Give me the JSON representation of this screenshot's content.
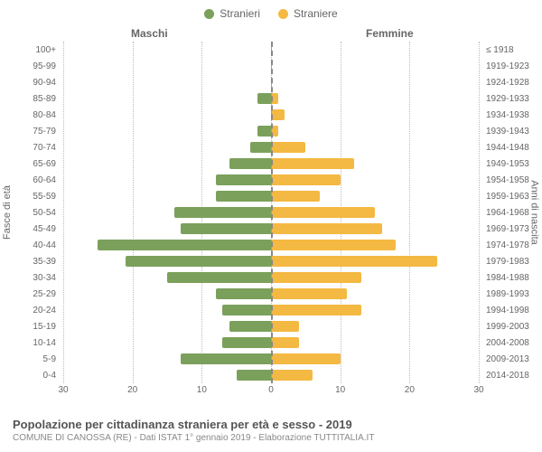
{
  "chart": {
    "type": "population-pyramid",
    "legend": {
      "male": {
        "label": "Stranieri",
        "color": "#7ba05b"
      },
      "female": {
        "label": "Straniere",
        "color": "#f4b942"
      }
    },
    "gender_headers": {
      "male": "Maschi",
      "female": "Femmine"
    },
    "y_left_title": "Fasce di età",
    "y_right_title": "Anni di nascita",
    "x_max": 30,
    "x_ticks": [
      30,
      20,
      10,
      0,
      10,
      20,
      30
    ],
    "colors": {
      "grid": "#bbbbbb",
      "center": "#888888",
      "tick_text": "#666666",
      "background": "#ffffff"
    },
    "font": {
      "body": 12,
      "tick": 10,
      "title": 13,
      "subtitle": 10
    },
    "age_groups": [
      {
        "age": "100+",
        "birth": "≤ 1918",
        "m": 0,
        "f": 0
      },
      {
        "age": "95-99",
        "birth": "1919-1923",
        "m": 0,
        "f": 0
      },
      {
        "age": "90-94",
        "birth": "1924-1928",
        "m": 0,
        "f": 0
      },
      {
        "age": "85-89",
        "birth": "1929-1933",
        "m": 2,
        "f": 1
      },
      {
        "age": "80-84",
        "birth": "1934-1938",
        "m": 0,
        "f": 2
      },
      {
        "age": "75-79",
        "birth": "1939-1943",
        "m": 2,
        "f": 1
      },
      {
        "age": "70-74",
        "birth": "1944-1948",
        "m": 3,
        "f": 5
      },
      {
        "age": "65-69",
        "birth": "1949-1953",
        "m": 6,
        "f": 12
      },
      {
        "age": "60-64",
        "birth": "1954-1958",
        "m": 8,
        "f": 10
      },
      {
        "age": "55-59",
        "birth": "1959-1963",
        "m": 8,
        "f": 7
      },
      {
        "age": "50-54",
        "birth": "1964-1968",
        "m": 14,
        "f": 15
      },
      {
        "age": "45-49",
        "birth": "1969-1973",
        "m": 13,
        "f": 16
      },
      {
        "age": "40-44",
        "birth": "1974-1978",
        "m": 25,
        "f": 18
      },
      {
        "age": "35-39",
        "birth": "1979-1983",
        "m": 21,
        "f": 24
      },
      {
        "age": "30-34",
        "birth": "1984-1988",
        "m": 15,
        "f": 13
      },
      {
        "age": "25-29",
        "birth": "1989-1993",
        "m": 8,
        "f": 11
      },
      {
        "age": "20-24",
        "birth": "1994-1998",
        "m": 7,
        "f": 13
      },
      {
        "age": "15-19",
        "birth": "1999-2003",
        "m": 6,
        "f": 4
      },
      {
        "age": "10-14",
        "birth": "2004-2008",
        "m": 7,
        "f": 4
      },
      {
        "age": "5-9",
        "birth": "2009-2013",
        "m": 13,
        "f": 10
      },
      {
        "age": "0-4",
        "birth": "2014-2018",
        "m": 5,
        "f": 6
      }
    ]
  },
  "footer": {
    "title": "Popolazione per cittadinanza straniera per età e sesso - 2019",
    "subtitle": "COMUNE DI CANOSSA (RE) - Dati ISTAT 1° gennaio 2019 - Elaborazione TUTTITALIA.IT"
  }
}
